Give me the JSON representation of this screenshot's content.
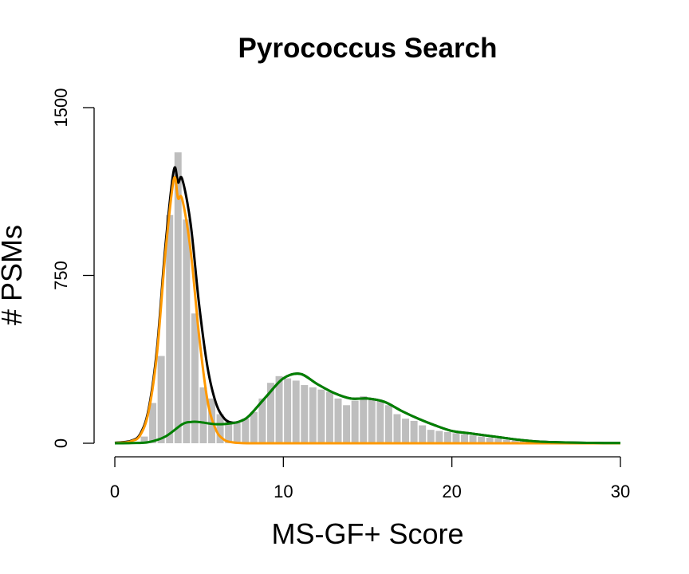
{
  "chart_data": {
    "type": "bar",
    "title": "Pyrococcus Search",
    "xlabel": "MS-GF+ Score",
    "ylabel": "# PSMs",
    "xlim": [
      0,
      30
    ],
    "ylim": [
      0,
      1500
    ],
    "x_ticks": [
      "0",
      "10",
      "20",
      "30"
    ],
    "y_ticks": [
      "0",
      "750",
      "1500"
    ],
    "bin_width": 0.5,
    "bin_starts": [
      0,
      0.5,
      1,
      1.5,
      2,
      2.5,
      3,
      3.5,
      4,
      4.5,
      5,
      5.5,
      6,
      6.5,
      7,
      7.5,
      8,
      8.5,
      9,
      9.5,
      10,
      10.5,
      11,
      11.5,
      12,
      12.5,
      13,
      13.5,
      14,
      14.5,
      15,
      15.5,
      16,
      16.5,
      17,
      17.5,
      18,
      18.5,
      19,
      19.5,
      20,
      20.5,
      21,
      21.5,
      22,
      22.5,
      23,
      23.5,
      24,
      24.5,
      25,
      25.5,
      26,
      26.5,
      27,
      27.5,
      28,
      28.5,
      29,
      29.5
    ],
    "counts": [
      2,
      3,
      5,
      30,
      180,
      390,
      1020,
      1300,
      1000,
      580,
      250,
      200,
      130,
      95,
      90,
      110,
      140,
      200,
      270,
      300,
      290,
      280,
      260,
      250,
      240,
      230,
      200,
      170,
      190,
      210,
      200,
      190,
      170,
      130,
      110,
      100,
      80,
      60,
      55,
      50,
      45,
      40,
      35,
      30,
      25,
      20,
      15,
      12,
      10,
      8,
      6,
      5,
      4,
      3,
      3,
      2,
      2,
      1,
      1,
      1
    ],
    "bar_color": "#bebebe",
    "series": [
      {
        "color": "#000000",
        "x": [
          0,
          0.5,
          1,
          1.5,
          2,
          2.5,
          3,
          3.5,
          3.75,
          4,
          4.5,
          5,
          5.5,
          6,
          6.5,
          7,
          7.5,
          8,
          9,
          10,
          11,
          12,
          13,
          14,
          15,
          16,
          17,
          18,
          19,
          20,
          21,
          22,
          23,
          24,
          25,
          26,
          27,
          28,
          29,
          30
        ],
        "y": [
          2,
          5,
          12,
          40,
          150,
          420,
          880,
          1220,
          1165,
          1180,
          980,
          620,
          340,
          180,
          110,
          92,
          100,
          125,
          210,
          290,
          310,
          265,
          225,
          200,
          200,
          185,
          145,
          110,
          80,
          55,
          45,
          35,
          25,
          15,
          8,
          5,
          3,
          2,
          1,
          1
        ]
      },
      {
        "color": "#ff9900",
        "x": [
          0,
          0.5,
          1,
          1.5,
          2,
          2.5,
          3,
          3.5,
          3.75,
          4,
          4.5,
          5,
          5.5,
          6,
          6.5,
          7,
          7.5,
          8,
          9,
          10,
          30
        ],
        "y": [
          1,
          3,
          10,
          35,
          140,
          400,
          850,
          1180,
          1095,
          1090,
          860,
          480,
          190,
          60,
          15,
          4,
          1,
          0,
          0,
          0,
          0
        ]
      },
      {
        "color": "#008000",
        "x": [
          0,
          1,
          2,
          3,
          4,
          4.5,
          5,
          6,
          7,
          7.5,
          8,
          9,
          10,
          11,
          12,
          13,
          14,
          15,
          16,
          17,
          18,
          19,
          20,
          21,
          22,
          23,
          24,
          25,
          26,
          27,
          28,
          29,
          30
        ],
        "y": [
          0,
          1,
          5,
          30,
          85,
          95,
          95,
          85,
          90,
          100,
          125,
          210,
          290,
          310,
          265,
          225,
          200,
          200,
          185,
          145,
          110,
          80,
          55,
          45,
          35,
          25,
          15,
          8,
          5,
          3,
          2,
          1,
          1
        ]
      }
    ]
  }
}
